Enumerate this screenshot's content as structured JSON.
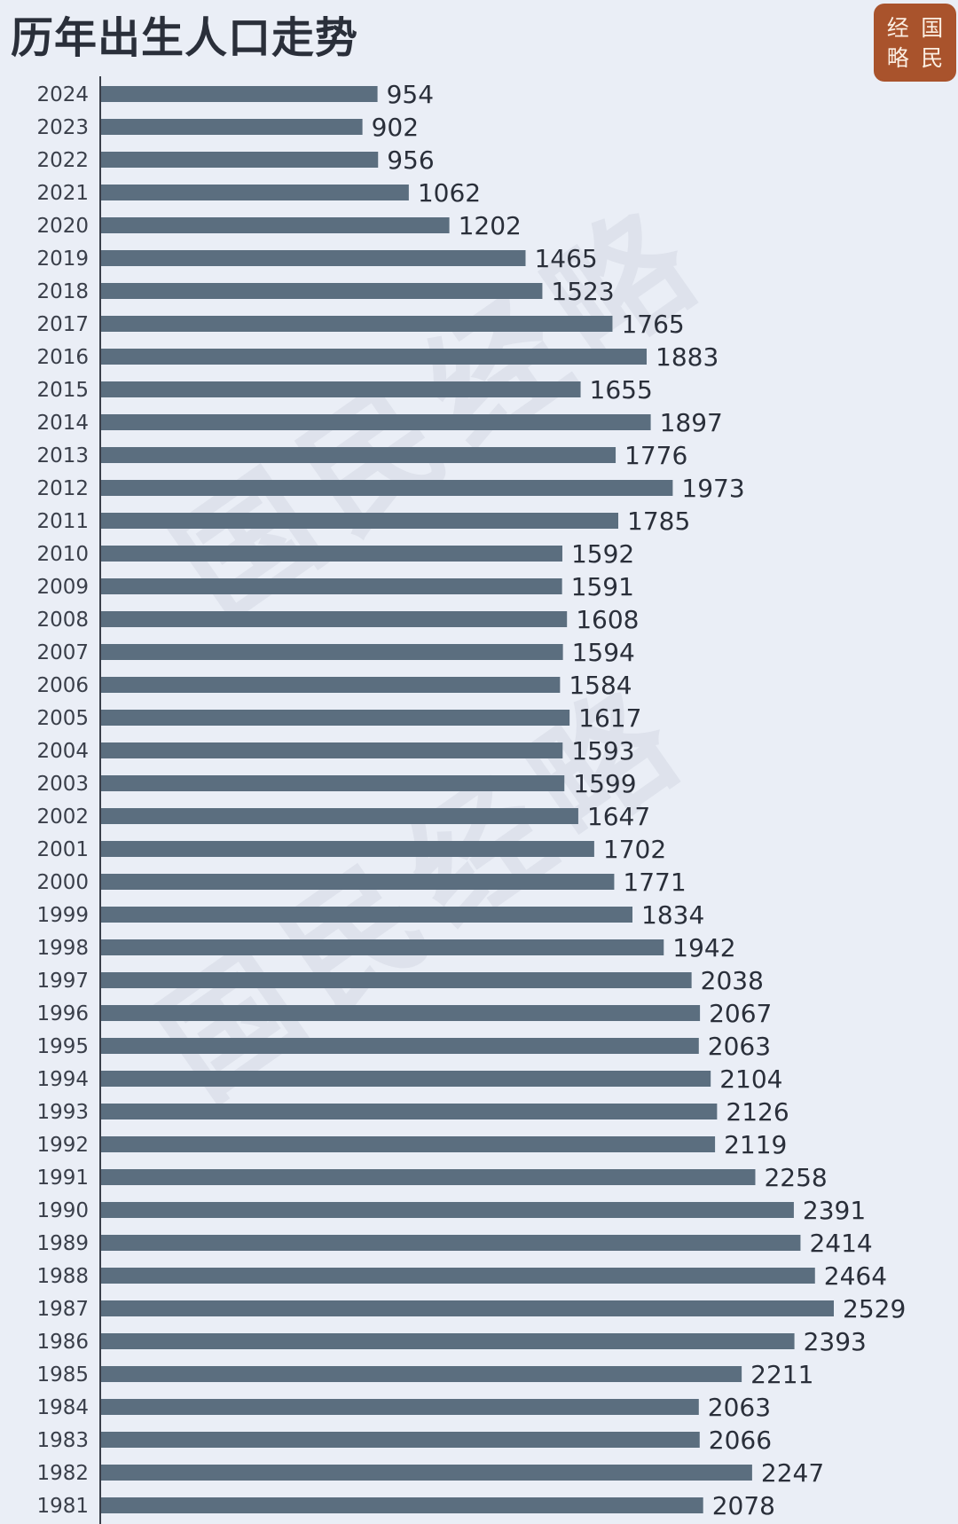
{
  "title": "历年出生人口走势",
  "logo": {
    "chars": [
      "经",
      "国",
      "略",
      "民"
    ],
    "color": "#a9532c"
  },
  "watermark": "国民经略",
  "colors": {
    "background": "#eaeef6",
    "bar": "#5b6e7f",
    "axis": "#3a3f4a"
  },
  "chart_data": {
    "type": "bar",
    "orientation": "horizontal",
    "title": "历年出生人口走势",
    "categories": [
      "2024",
      "2023",
      "2022",
      "2021",
      "2020",
      "2019",
      "2018",
      "2017",
      "2016",
      "2015",
      "2014",
      "2013",
      "2012",
      "2011",
      "2010",
      "2009",
      "2008",
      "2007",
      "2006",
      "2005",
      "2004",
      "2003",
      "2002",
      "2001",
      "2000",
      "1999",
      "1998",
      "1997",
      "1996",
      "1995",
      "1994",
      "1993",
      "1992",
      "1991",
      "1990",
      "1989",
      "1988",
      "1987",
      "1986",
      "1985",
      "1984",
      "1983",
      "1982",
      "1981"
    ],
    "values": [
      954,
      902,
      956,
      1062,
      1202,
      1465,
      1523,
      1765,
      1883,
      1655,
      1897,
      1776,
      1973,
      1785,
      1592,
      1591,
      1608,
      1594,
      1584,
      1617,
      1593,
      1599,
      1647,
      1702,
      1771,
      1834,
      1942,
      2038,
      2067,
      2063,
      2104,
      2126,
      2119,
      2258,
      2391,
      2414,
      2464,
      2529,
      2393,
      2211,
      2063,
      2066,
      2247,
      2078
    ],
    "data_labels": true,
    "grid": false,
    "legend": "none",
    "xaxis_visible": false
  }
}
